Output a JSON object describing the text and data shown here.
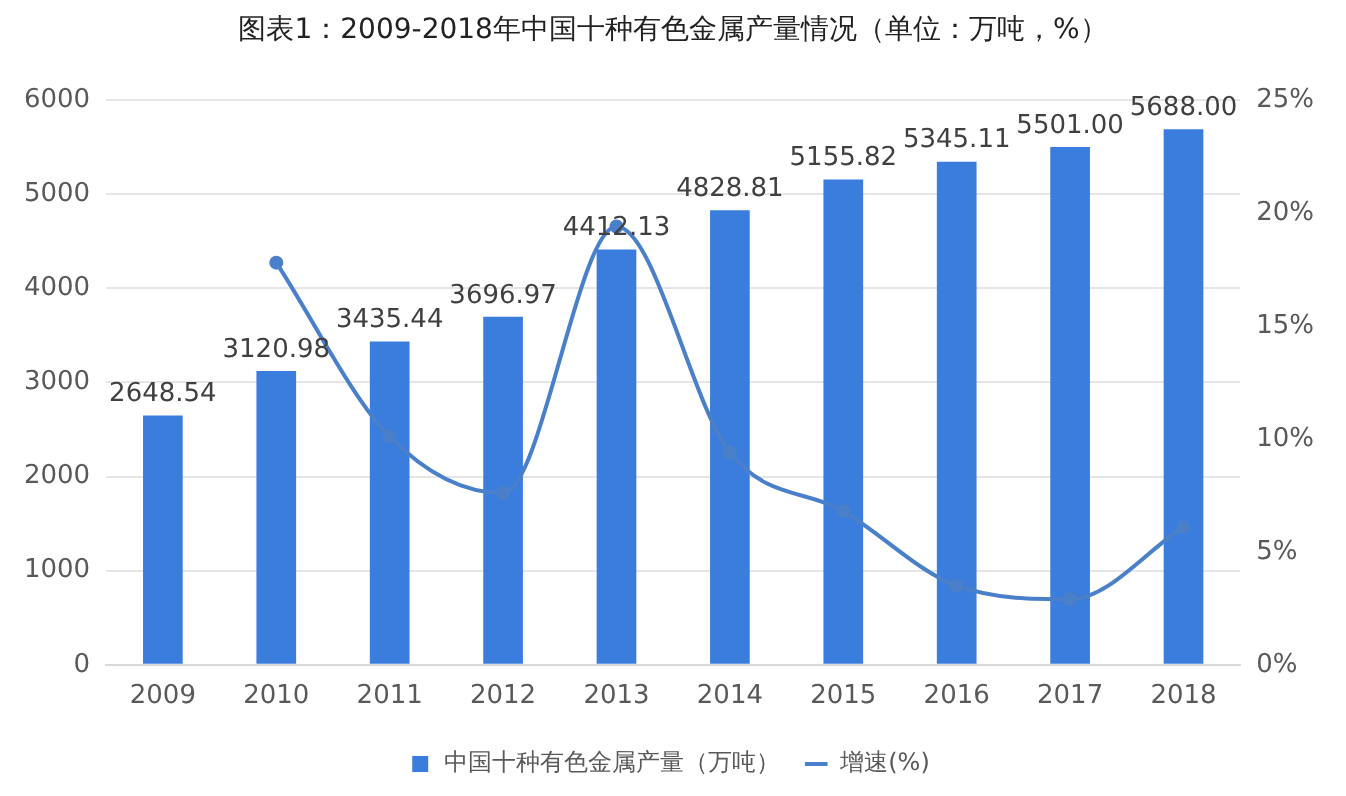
{
  "chart_data": {
    "type": "bar",
    "title": "图表1：2009-2018年中国十种有色金属产量情况（单位：万吨，%）",
    "categories": [
      "2009",
      "2010",
      "2011",
      "2012",
      "2013",
      "2014",
      "2015",
      "2016",
      "2017",
      "2018"
    ],
    "series": [
      {
        "name": "中国十种有色金属产量（万吨）",
        "color": "#3b7ddd",
        "values": [
          2648.54,
          3120.98,
          3435.44,
          3696.97,
          4412.13,
          4828.81,
          5155.82,
          5345.11,
          5501.0,
          5688.0
        ],
        "value_labels": [
          "2648.54",
          "3120.98",
          "3435.44",
          "3696.97",
          "4412.13",
          "4828.81",
          "5155.82",
          "5345.11",
          "5501.00",
          "5688.00"
        ]
      },
      {
        "name": "增速(%)",
        "type": "line",
        "axis": "y2",
        "color": "#4a7fc9",
        "values": [
          null,
          17.8,
          10.1,
          7.6,
          19.4,
          9.4,
          6.8,
          3.5,
          2.9,
          6.1
        ]
      }
    ],
    "ylim": [
      0,
      6000
    ],
    "yticks": [
      0,
      1000,
      2000,
      3000,
      4000,
      5000,
      6000
    ],
    "y2lim": [
      0,
      25
    ],
    "y2ticks": [
      {
        "value": 0,
        "label": "0%"
      },
      {
        "value": 5,
        "label": "5%"
      },
      {
        "value": 10,
        "label": "10%"
      },
      {
        "value": 15,
        "label": "15%"
      },
      {
        "value": 20,
        "label": "20%"
      },
      {
        "value": 25,
        "label": "25%"
      }
    ],
    "grid": "y",
    "legend": "bottom",
    "marker": "circle",
    "line_style": "solid"
  }
}
